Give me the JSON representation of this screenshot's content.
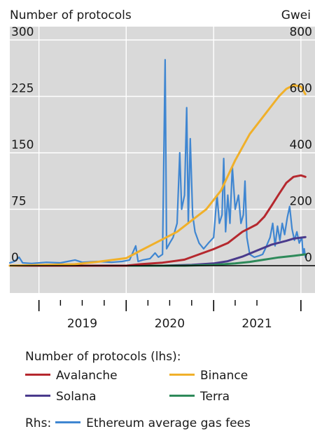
{
  "chart_data": {
    "type": "line",
    "left_axis_title": "Number of protocols",
    "right_axis_title": "Gwei",
    "left_ticks": [
      300,
      225,
      150,
      75,
      0
    ],
    "right_ticks": [
      800,
      600,
      400,
      200,
      0
    ],
    "ylim_left": [
      0,
      300
    ],
    "ylim_right": [
      0,
      800
    ],
    "x_labels": [
      "2019",
      "2020",
      "2021"
    ],
    "x_range": [
      "2018-09-01",
      "2022-03-01"
    ],
    "grid": true,
    "legend_title": "Number of protocols (lhs):",
    "rhs_prefix": "Rhs:",
    "series": [
      {
        "name": "Avalanche",
        "axis": "left",
        "color": "#b5282e",
        "points": [
          [
            "2018-09-01",
            0
          ],
          [
            "2019-09-01",
            0
          ],
          [
            "2020-01-01",
            0
          ],
          [
            "2020-03-01",
            2
          ],
          [
            "2020-06-01",
            4
          ],
          [
            "2020-09-01",
            8
          ],
          [
            "2020-11-01",
            15
          ],
          [
            "2021-01-01",
            22
          ],
          [
            "2021-03-01",
            30
          ],
          [
            "2021-05-01",
            45
          ],
          [
            "2021-06-01",
            50
          ],
          [
            "2021-07-01",
            55
          ],
          [
            "2021-08-01",
            65
          ],
          [
            "2021-09-01",
            80
          ],
          [
            "2021-10-01",
            95
          ],
          [
            "2021-11-01",
            110
          ],
          [
            "2021-12-01",
            118
          ],
          [
            "2022-01-01",
            120
          ],
          [
            "2022-01-20",
            118
          ]
        ]
      },
      {
        "name": "Binance",
        "axis": "left",
        "color": "#f0b02a",
        "points": [
          [
            "2018-09-01",
            0
          ],
          [
            "2019-06-01",
            2
          ],
          [
            "2019-09-01",
            5
          ],
          [
            "2020-01-01",
            10
          ],
          [
            "2020-03-01",
            20
          ],
          [
            "2020-05-01",
            30
          ],
          [
            "2020-08-01",
            45
          ],
          [
            "2020-10-01",
            60
          ],
          [
            "2020-12-01",
            75
          ],
          [
            "2021-02-01",
            100
          ],
          [
            "2021-04-01",
            140
          ],
          [
            "2021-06-01",
            175
          ],
          [
            "2021-08-01",
            200
          ],
          [
            "2021-10-01",
            225
          ],
          [
            "2021-11-01",
            235
          ],
          [
            "2021-12-01",
            240
          ],
          [
            "2022-01-01",
            238
          ],
          [
            "2022-01-20",
            228
          ]
        ]
      },
      {
        "name": "Solana",
        "axis": "left",
        "color": "#4a3a8c",
        "points": [
          [
            "2018-09-01",
            0
          ],
          [
            "2020-06-01",
            0
          ],
          [
            "2020-10-01",
            1
          ],
          [
            "2021-01-01",
            3
          ],
          [
            "2021-03-01",
            6
          ],
          [
            "2021-05-01",
            12
          ],
          [
            "2021-07-01",
            20
          ],
          [
            "2021-09-01",
            28
          ],
          [
            "2021-11-01",
            33
          ],
          [
            "2021-12-01",
            36
          ],
          [
            "2022-01-20",
            38
          ]
        ]
      },
      {
        "name": "Terra",
        "axis": "left",
        "color": "#2e8a5a",
        "points": [
          [
            "2018-09-01",
            0
          ],
          [
            "2020-09-01",
            0
          ],
          [
            "2021-01-01",
            1
          ],
          [
            "2021-04-01",
            3
          ],
          [
            "2021-06-01",
            5
          ],
          [
            "2021-08-01",
            8
          ],
          [
            "2021-10-01",
            11
          ],
          [
            "2021-12-01",
            13
          ],
          [
            "2022-01-20",
            15
          ]
        ]
      },
      {
        "name": "Ethereum average gas fees",
        "axis": "right",
        "color": "#3f86d1",
        "points": [
          [
            "2018-09-01",
            10
          ],
          [
            "2018-09-20",
            15
          ],
          [
            "2018-10-10",
            30
          ],
          [
            "2018-10-25",
            10
          ],
          [
            "2018-12-01",
            8
          ],
          [
            "2019-02-01",
            12
          ],
          [
            "2019-04-01",
            10
          ],
          [
            "2019-06-01",
            20
          ],
          [
            "2019-07-01",
            12
          ],
          [
            "2019-09-01",
            15
          ],
          [
            "2019-11-01",
            12
          ],
          [
            "2019-12-15",
            15
          ],
          [
            "2020-01-15",
            20
          ],
          [
            "2020-02-10",
            70
          ],
          [
            "2020-02-20",
            15
          ],
          [
            "2020-03-10",
            20
          ],
          [
            "2020-04-10",
            25
          ],
          [
            "2020-05-01",
            45
          ],
          [
            "2020-05-15",
            30
          ],
          [
            "2020-06-01",
            40
          ],
          [
            "2020-06-12",
            730
          ],
          [
            "2020-06-18",
            60
          ],
          [
            "2020-07-01",
            80
          ],
          [
            "2020-07-15",
            100
          ],
          [
            "2020-08-01",
            150
          ],
          [
            "2020-08-12",
            400
          ],
          [
            "2020-08-20",
            200
          ],
          [
            "2020-09-01",
            250
          ],
          [
            "2020-09-10",
            560
          ],
          [
            "2020-09-17",
            150
          ],
          [
            "2020-09-25",
            450
          ],
          [
            "2020-10-05",
            180
          ],
          [
            "2020-10-15",
            120
          ],
          [
            "2020-11-01",
            80
          ],
          [
            "2020-11-20",
            60
          ],
          [
            "2020-12-10",
            80
          ],
          [
            "2021-01-01",
            100
          ],
          [
            "2021-01-15",
            250
          ],
          [
            "2021-01-25",
            150
          ],
          [
            "2021-02-05",
            180
          ],
          [
            "2021-02-12",
            380
          ],
          [
            "2021-02-20",
            120
          ],
          [
            "2021-03-01",
            250
          ],
          [
            "2021-03-10",
            150
          ],
          [
            "2021-03-20",
            350
          ],
          [
            "2021-04-01",
            200
          ],
          [
            "2021-04-15",
            250
          ],
          [
            "2021-04-25",
            150
          ],
          [
            "2021-05-05",
            180
          ],
          [
            "2021-05-12",
            300
          ],
          [
            "2021-05-20",
            100
          ],
          [
            "2021-06-01",
            40
          ],
          [
            "2021-06-20",
            30
          ],
          [
            "2021-07-10",
            35
          ],
          [
            "2021-07-25",
            40
          ],
          [
            "2021-08-05",
            60
          ],
          [
            "2021-08-15",
            80
          ],
          [
            "2021-08-25",
            100
          ],
          [
            "2021-09-05",
            150
          ],
          [
            "2021-09-15",
            70
          ],
          [
            "2021-09-25",
            140
          ],
          [
            "2021-10-05",
            90
          ],
          [
            "2021-10-15",
            150
          ],
          [
            "2021-10-25",
            110
          ],
          [
            "2021-11-05",
            170
          ],
          [
            "2021-11-15",
            210
          ],
          [
            "2021-11-25",
            130
          ],
          [
            "2021-12-05",
            90
          ],
          [
            "2021-12-15",
            120
          ],
          [
            "2021-12-25",
            80
          ],
          [
            "2022-01-05",
            100
          ],
          [
            "2022-01-10",
            40
          ],
          [
            "2022-01-15",
            60
          ],
          [
            "2022-01-20",
            30
          ]
        ]
      }
    ]
  }
}
